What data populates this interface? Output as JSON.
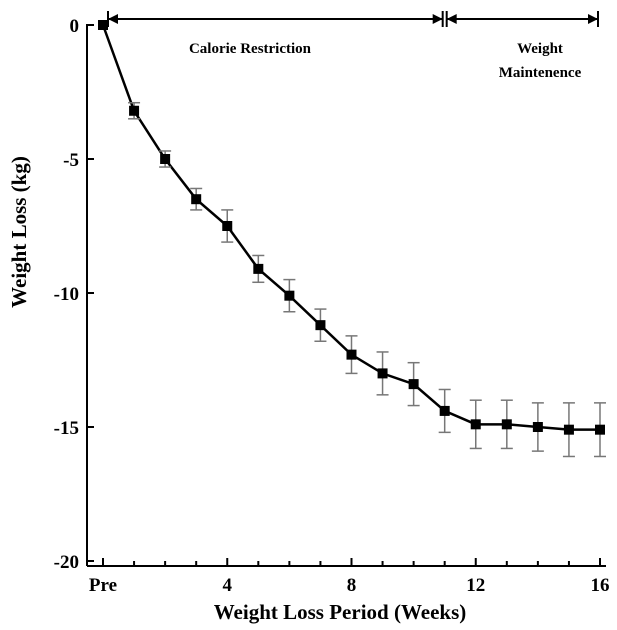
{
  "chart_data": {
    "type": "line",
    "title": "",
    "xlabel": "Weight Loss Period (Weeks)",
    "ylabel": "Weight Loss (kg)",
    "xlim": [
      0,
      16
    ],
    "ylim": [
      -20,
      0
    ],
    "x_ticks": [
      {
        "value": 0,
        "label": "Pre"
      },
      {
        "value": 4,
        "label": "4"
      },
      {
        "value": 8,
        "label": "8"
      },
      {
        "value": 12,
        "label": "12"
      },
      {
        "value": 16,
        "label": "16"
      }
    ],
    "y_ticks": [
      {
        "value": 0,
        "label": "0"
      },
      {
        "value": -5,
        "label": "-5"
      },
      {
        "value": -10,
        "label": "-10"
      },
      {
        "value": -15,
        "label": "-15"
      },
      {
        "value": -20,
        "label": "-20"
      }
    ],
    "grid": false,
    "series": [
      {
        "name": "",
        "color": "#000000",
        "marker": "square",
        "x": [
          0,
          1,
          2,
          3,
          4,
          5,
          6,
          7,
          8,
          9,
          10,
          11,
          12,
          13,
          14,
          15,
          16
        ],
        "y": [
          0,
          -3.2,
          -5.0,
          -6.5,
          -7.5,
          -9.1,
          -10.1,
          -11.2,
          -12.3,
          -13.0,
          -13.4,
          -14.4,
          -14.9,
          -14.9,
          -15.0,
          -15.1,
          -15.1
        ],
        "error": [
          0,
          0.3,
          0.3,
          0.4,
          0.6,
          0.5,
          0.6,
          0.6,
          0.7,
          0.8,
          0.8,
          0.8,
          0.9,
          0.9,
          0.9,
          1.0,
          1.0
        ]
      }
    ],
    "annotations": [
      {
        "label": "Calorie Restriction",
        "x_start": 0,
        "x_end": 11
      },
      {
        "label": "Weight Maintenence",
        "x_start": 11,
        "x_end": 16
      }
    ]
  }
}
